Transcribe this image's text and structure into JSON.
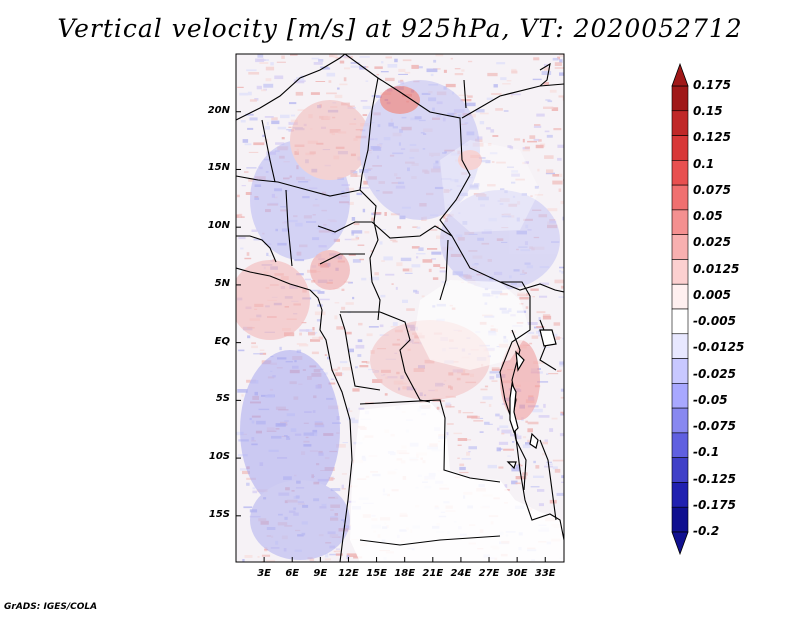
{
  "title": "Vertical velocity [m/s] at 925hPa, VT: 2020052712",
  "credit": "GrADS: IGES/COLA",
  "map": {
    "lon_range": [
      0,
      35
    ],
    "lat_range": [
      -19,
      25
    ],
    "lat_ticks": [
      {
        "value": 20,
        "label": "20N"
      },
      {
        "value": 15,
        "label": "15N"
      },
      {
        "value": 10,
        "label": "10N"
      },
      {
        "value": 5,
        "label": "5N"
      },
      {
        "value": 0,
        "label": "EQ"
      },
      {
        "value": -5,
        "label": "5S"
      },
      {
        "value": -10,
        "label": "10S"
      },
      {
        "value": -15,
        "label": "15S"
      }
    ],
    "lon_ticks": [
      {
        "value": 3,
        "label": "3E"
      },
      {
        "value": 6,
        "label": "6E"
      },
      {
        "value": 9,
        "label": "9E"
      },
      {
        "value": 12,
        "label": "12E"
      },
      {
        "value": 15,
        "label": "15E"
      },
      {
        "value": 18,
        "label": "18E"
      },
      {
        "value": 21,
        "label": "21E"
      },
      {
        "value": 24,
        "label": "24E"
      },
      {
        "value": 27,
        "label": "27E"
      },
      {
        "value": 30,
        "label": "30E"
      },
      {
        "value": 33,
        "label": "33E"
      }
    ]
  },
  "colorbar": {
    "labels": [
      "0.175",
      "0.15",
      "0.125",
      "0.1",
      "0.075",
      "0.05",
      "0.025",
      "0.0125",
      "0.005",
      "-0.005",
      "-0.0125",
      "-0.025",
      "-0.05",
      "-0.075",
      "-0.1",
      "-0.125",
      "-0.175",
      "-0.2"
    ],
    "colors": [
      "#a01818",
      "#c02828",
      "#d83838",
      "#e85050",
      "#f07070",
      "#f49090",
      "#f8b0b0",
      "#fcd0d0",
      "#fff0f0",
      "#ffffff",
      "#e8e8ff",
      "#c8c8ff",
      "#a8a8ff",
      "#8888f0",
      "#6060e0",
      "#4040c8",
      "#2020b0",
      "#101090"
    ],
    "top_arrow_color": "#a01818",
    "bottom_arrow_color": "#101090"
  }
}
